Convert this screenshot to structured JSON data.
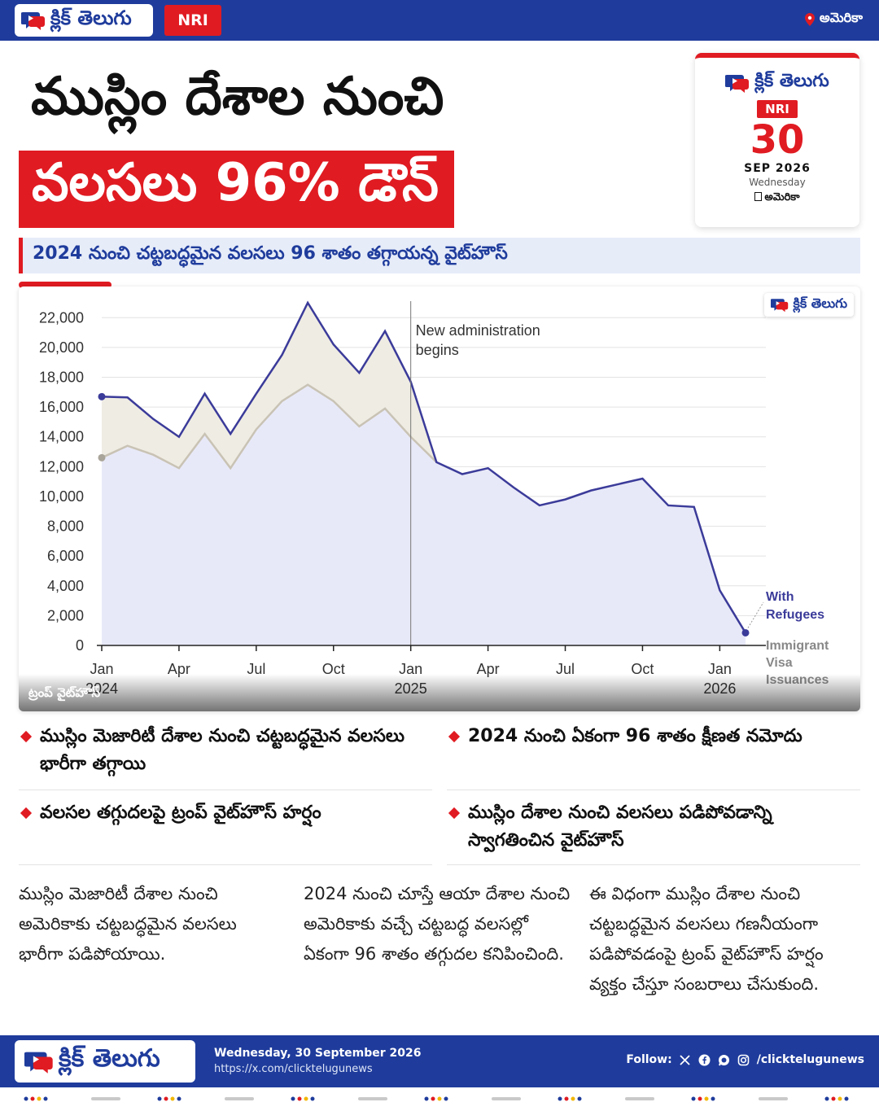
{
  "brand": {
    "name": "క్లిక్ తెలుగు",
    "section": "NRI",
    "location": "అమెరికా"
  },
  "headline": {
    "line1": "ముస్లిం దేశాల నుంచి",
    "line2": "వలసలు 96% డౌన్"
  },
  "date_card": {
    "day": "30",
    "month_year": "SEP 2026",
    "weekday": "Wednesday",
    "location": "అమెరికా"
  },
  "subheadline": "2024 నుంచి చట్టబద్ధమైన వలసలు 96 శాతం తగ్గాయన్న వైట్‌హౌస్",
  "image_credit": "ట్రంప్ వైట్‌హౌస్",
  "chart_data": {
    "type": "area",
    "yticks": [
      "0",
      "2,000",
      "4,000",
      "6,000",
      "8,000",
      "10,000",
      "12,000",
      "14,000",
      "16,000",
      "18,000",
      "20,000",
      "22,000"
    ],
    "ylim": [
      0,
      23000
    ],
    "xticks": [
      {
        "label": "Jan",
        "sub": "2024",
        "i": 0
      },
      {
        "label": "Apr",
        "sub": "",
        "i": 3
      },
      {
        "label": "Jul",
        "sub": "",
        "i": 6
      },
      {
        "label": "Oct",
        "sub": "",
        "i": 9
      },
      {
        "label": "Jan",
        "sub": "2025",
        "i": 12
      },
      {
        "label": "Apr",
        "sub": "",
        "i": 15
      },
      {
        "label": "Jul",
        "sub": "",
        "i": 18
      },
      {
        "label": "Oct",
        "sub": "",
        "i": 21
      },
      {
        "label": "Jan",
        "sub": "2026",
        "i": 24
      }
    ],
    "x_count": 26,
    "series": [
      {
        "name": "With Refugees",
        "color": "#3b3b9a",
        "values": [
          16700,
          16650,
          15200,
          14000,
          16900,
          14200,
          16900,
          19500,
          23000,
          20200,
          18300,
          21100,
          17700,
          12300,
          11500,
          11900,
          10600,
          9400,
          9800,
          10400,
          10800,
          11200,
          9400,
          9300,
          3700,
          850
        ]
      },
      {
        "name": "Immigrant Visa Issuances",
        "color": "#c9c3b5",
        "values": [
          12600,
          13400,
          12800,
          11900,
          14200,
          11900,
          14500,
          16400,
          17500,
          16400,
          14700,
          15900,
          14000,
          12300
        ]
      }
    ],
    "annotation": {
      "text_line1": "New administration",
      "text_line2": "begins",
      "at_index": 12
    },
    "series_label_1": [
      "With",
      "Refugees"
    ],
    "series_label_2": [
      "Immigrant",
      "Visa",
      "Issuances"
    ]
  },
  "bullets": [
    "ముస్లిం మెజారిటీ దేశాల నుంచి చట్టబద్ధమైన వలసలు భారీగా తగ్గాయి",
    "2024 నుంచి ఏకంగా 96 శాతం క్షీణత నమోదు",
    "వలసల తగ్గుదలపై ట్రంప్ వైట్‌హౌస్ హర్షం",
    "ముస్లిం దేశాల నుంచి వలసలు పడిపోవడాన్ని స్వాగతించిన వైట్‌హౌస్"
  ],
  "columns": [
    "ముస్లిం మెజారిటీ దేశాల నుంచి అమెరికాకు చట్టబద్ధమైన వలసలు భారీగా పడిపోయాయి.",
    "2024 నుంచి చూస్తే ఆయా దేశాల నుంచి అమెరికాకు వచ్చే చట్టబద్ధ వలసల్లో ఏకంగా 96 శాతం తగ్గుదల కనిపించింది.",
    "ఈ విధంగా ముస్లిం దేశాల నుంచి చట్టబద్ధమైన వలసలు గణనీయంగా పడిపోవడంపై ట్రంప్ వైట్‌హౌస్ హర్షం వ్యక్తం చేస్తూ సంబరాలు చేసుకుంది."
  ],
  "footer": {
    "date": "Wednesday, 30 September 2026",
    "url": "https://x.com/clicktelugunews",
    "follow_label": "Follow:",
    "handle": "/clicktelugunews"
  },
  "colors": {
    "brand_blue": "#1f3c9c",
    "brand_red": "#e01b22"
  }
}
